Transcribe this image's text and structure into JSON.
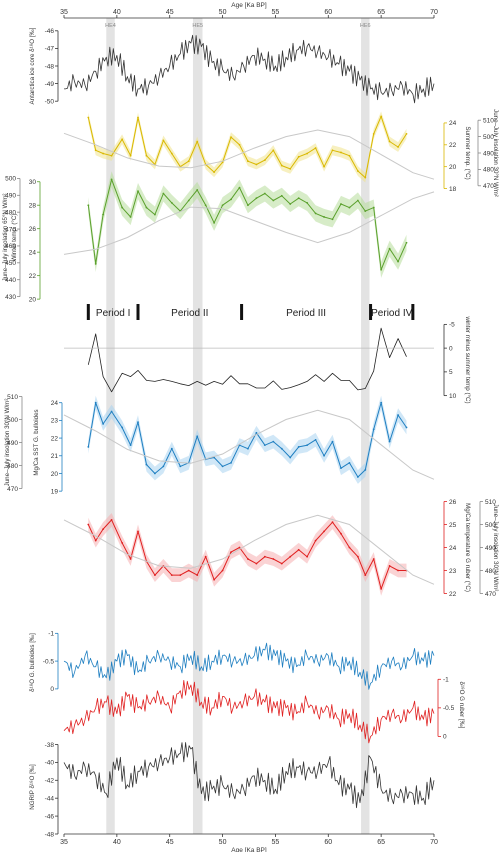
{
  "chart_data": {
    "type": "line",
    "xlabel": "Age [Ka BP]",
    "xlim": [
      35,
      70
    ],
    "x_ticks": [
      35,
      40,
      45,
      50,
      55,
      60,
      65,
      70
    ],
    "heinrich_events": [
      {
        "label": "HE4",
        "from": 39.0,
        "to": 39.8
      },
      {
        "label": "HE5",
        "from": 47.2,
        "to": 48.1
      },
      {
        "label": "HE6",
        "from": 63.1,
        "to": 63.9
      }
    ],
    "periods": [
      {
        "label": "Period I",
        "from": 37.3,
        "to": 42.0
      },
      {
        "label": "Period II",
        "from": 42.0,
        "to": 51.8
      },
      {
        "label": "Period III",
        "from": 51.8,
        "to": 64.0
      },
      {
        "label": "Period IV",
        "from": 64.0,
        "to": 68.0
      }
    ],
    "panels": [
      {
        "id": "antarctica",
        "label": "Antarctica ice core δ¹⁸O [‰]",
        "color": "#333333",
        "ylim": [
          -50.5,
          -45.5
        ],
        "ticks": [
          -46,
          -47,
          -48,
          -49,
          -50
        ],
        "x": [
          35,
          36,
          37,
          38,
          39,
          40,
          41,
          42,
          43,
          44,
          45,
          46,
          47,
          48,
          49,
          50,
          51,
          52,
          53,
          54,
          55,
          56,
          57,
          58,
          59,
          60,
          61,
          62,
          63,
          64,
          65,
          66,
          67,
          68,
          69,
          70
        ],
        "y": [
          -49.3,
          -48.9,
          -49.1,
          -48.3,
          -47.5,
          -47.4,
          -48.6,
          -49.3,
          -49.1,
          -48.6,
          -48.0,
          -47.3,
          -46.7,
          -46.9,
          -47.8,
          -48.2,
          -48.6,
          -48.0,
          -47.4,
          -47.6,
          -48.0,
          -47.5,
          -47.1,
          -46.9,
          -47.2,
          -47.5,
          -47.9,
          -48.3,
          -48.8,
          -49.3,
          -49.5,
          -49.4,
          -49.1,
          -49.6,
          -49.3,
          -49.0
        ]
      },
      {
        "id": "summer",
        "label": "Summer temp. (°C)",
        "color": "#d9b800",
        "band": "#f0e48c",
        "ylim": [
          17.5,
          25
        ],
        "ticks": [
          18,
          20,
          22,
          24
        ],
        "x": [
          37.3,
          38,
          38.7,
          39.5,
          40.5,
          41.3,
          42,
          42.8,
          43.6,
          44.4,
          45.2,
          46,
          46.8,
          47.6,
          48.4,
          49.2,
          50,
          50.8,
          51.6,
          52.4,
          53.2,
          54,
          54.8,
          55.6,
          56.4,
          57.2,
          58,
          58.8,
          59.6,
          60.4,
          61.2,
          62,
          62.8,
          63.5,
          64.3,
          65,
          65.8,
          66.6,
          67.4
        ],
        "y": [
          24.5,
          21.5,
          21.2,
          21.0,
          22.5,
          21.0,
          24.5,
          21.0,
          20.2,
          22.4,
          21.2,
          20.0,
          20.5,
          22.3,
          20.2,
          19.5,
          20.4,
          22.7,
          22.0,
          20.5,
          20.2,
          20.6,
          21.5,
          20.1,
          19.8,
          20.9,
          21.2,
          21.7,
          20.0,
          21.5,
          21.3,
          21.0,
          19.6,
          19.0,
          23.0,
          24.6,
          22.3,
          21.8,
          23.0
        ]
      },
      {
        "id": "winter",
        "label": "Winter temp. (°C)",
        "color": "#5aa02c",
        "band": "#b7dc9b",
        "ylim": [
          19.5,
          31
        ],
        "ticks": [
          20,
          22,
          24,
          26,
          28,
          30
        ],
        "x": [
          37.3,
          38,
          38.7,
          39.5,
          40.5,
          41.3,
          42,
          42.8,
          43.6,
          44.4,
          45.2,
          46,
          46.8,
          47.6,
          48.4,
          49.2,
          50,
          50.8,
          51.6,
          52.4,
          53.2,
          54,
          54.8,
          55.6,
          56.4,
          57.2,
          58,
          58.8,
          59.6,
          60.4,
          61.2,
          62,
          62.8,
          63.5,
          64.3,
          65,
          65.8,
          66.6,
          67.4
        ],
        "y": [
          28.0,
          23.0,
          27.2,
          30.2,
          27.8,
          27.0,
          29.2,
          27.8,
          27.2,
          29.0,
          28.2,
          27.5,
          28.4,
          29.3,
          28.0,
          26.5,
          28.0,
          28.5,
          29.5,
          28.0,
          28.6,
          29.0,
          28.4,
          28.8,
          28.1,
          28.6,
          28.2,
          27.3,
          27.0,
          26.8,
          28.1,
          27.8,
          28.4,
          27.5,
          27.8,
          22.5,
          24.3,
          23.2,
          24.8
        ]
      },
      {
        "id": "difference",
        "label": "winter minus summer temp (°C)",
        "color": "#222222",
        "ylim": [
          10.5,
          -5.5
        ],
        "ticks": [
          -5,
          0,
          5,
          10
        ],
        "x": [
          37.3,
          38,
          38.7,
          39.5,
          40.5,
          41.3,
          42,
          42.8,
          43.6,
          44.4,
          45.2,
          46,
          46.8,
          47.6,
          48.4,
          49.2,
          50,
          50.8,
          51.6,
          52.4,
          53.2,
          54,
          54.8,
          55.6,
          56.4,
          57.2,
          58,
          58.8,
          59.6,
          60.4,
          61.2,
          62,
          62.8,
          63.5,
          64.3,
          65,
          65.8,
          66.6,
          67.4
        ],
        "y": [
          3.5,
          -3.0,
          6.0,
          9.2,
          5.3,
          6.0,
          4.7,
          6.8,
          7.0,
          6.6,
          7.0,
          7.5,
          7.9,
          7.0,
          7.8,
          7.0,
          7.6,
          5.8,
          7.5,
          7.5,
          8.4,
          8.4,
          6.9,
          8.7,
          8.3,
          7.7,
          7.0,
          5.6,
          7.0,
          5.3,
          6.8,
          6.8,
          8.8,
          8.5,
          4.8,
          -4.2,
          2.0,
          -2.0,
          1.8
        ]
      },
      {
        "id": "sst_bulloides",
        "label": "Mg/Ca SST G. bulloides",
        "color": "#1f7fc1",
        "band": "#a9d3f0",
        "ylim": [
          18.5,
          25
        ],
        "ticks": [
          19,
          20,
          21,
          22,
          23,
          24
        ],
        "x": [
          37.3,
          38,
          38.7,
          39.5,
          40.5,
          41.3,
          42,
          42.8,
          43.6,
          44.4,
          45.2,
          46,
          46.8,
          47.6,
          48.4,
          49.2,
          50,
          50.8,
          51.6,
          52.4,
          53.2,
          54,
          54.8,
          55.6,
          56.4,
          57.2,
          58,
          58.8,
          59.6,
          60.4,
          61.2,
          62,
          62.8,
          63.5,
          64.3,
          65,
          65.8,
          66.6,
          67.4
        ],
        "y": [
          21.5,
          24.0,
          22.8,
          23.5,
          22.6,
          21.6,
          22.9,
          20.5,
          20.0,
          20.4,
          21.4,
          20.4,
          20.6,
          22.1,
          20.8,
          20.9,
          20.4,
          20.6,
          21.6,
          21.4,
          22.3,
          21.6,
          21.8,
          21.4,
          20.9,
          21.5,
          21.6,
          21.9,
          21.0,
          21.8,
          20.3,
          20.6,
          19.8,
          20.2,
          22.5,
          24.0,
          21.8,
          23.3,
          22.6
        ]
      },
      {
        "id": "ruber",
        "label": "Mg/Ca temperature G ruber (°C)",
        "color": "#e02020",
        "band": "#f5aeb0",
        "ylim": [
          21.5,
          26.5
        ],
        "ticks": [
          22,
          23,
          24,
          25,
          26
        ],
        "x": [
          37.3,
          38,
          38.7,
          39.5,
          40.5,
          41.3,
          42,
          42.8,
          43.6,
          44.4,
          45.2,
          46,
          46.8,
          47.6,
          48.4,
          49.2,
          50,
          50.8,
          51.6,
          52.4,
          53.2,
          54,
          54.8,
          55.6,
          56.4,
          57.2,
          58,
          58.8,
          59.6,
          60.4,
          61.2,
          62,
          62.8,
          63.5,
          64.3,
          65,
          65.8,
          66.6,
          67.4
        ],
        "y": [
          25.0,
          24.3,
          24.8,
          25.2,
          24.2,
          23.5,
          24.7,
          23.4,
          22.8,
          23.2,
          22.8,
          22.8,
          23.0,
          22.8,
          23.6,
          22.6,
          23.0,
          23.8,
          24.0,
          23.5,
          23.3,
          23.6,
          23.5,
          23.3,
          23.6,
          23.9,
          23.6,
          24.3,
          24.7,
          25.1,
          24.6,
          24.0,
          23.6,
          22.8,
          23.5,
          22.2,
          23.2,
          23.0,
          23.0
        ]
      },
      {
        "id": "d18o_bulloides",
        "label": "δ¹⁸O G. bulloides [‰]",
        "color": "#1f7fc1",
        "ylim": [
          0.2,
          -1.15
        ],
        "ticks": [
          -1,
          -0.5,
          0
        ],
        "x": [
          35,
          36,
          37,
          38,
          39,
          40,
          41,
          42,
          43,
          44,
          45,
          46,
          47,
          48,
          49,
          50,
          51,
          52,
          53,
          54,
          55,
          56,
          57,
          58,
          59,
          60,
          61,
          62,
          63,
          64,
          65,
          66,
          67,
          68,
          69,
          70
        ],
        "y": [
          -0.5,
          -0.3,
          -0.6,
          -0.4,
          -0.2,
          -0.5,
          -0.6,
          -0.3,
          -0.5,
          -0.6,
          -0.5,
          -0.4,
          -0.6,
          -0.4,
          -0.5,
          -0.6,
          -0.5,
          -0.5,
          -0.6,
          -0.7,
          -0.6,
          -0.5,
          -0.4,
          -0.6,
          -0.5,
          -0.6,
          -0.4,
          -0.5,
          -0.3,
          -0.1,
          -0.4,
          -0.5,
          -0.4,
          -0.6,
          -0.5,
          -0.6
        ]
      },
      {
        "id": "d18o_ruber",
        "label": "δ¹⁸O G ruber [‰]",
        "color": "#e02020",
        "ylim": [
          0.15,
          -1.25
        ],
        "ticks": [
          -1,
          -0.5,
          0
        ],
        "x": [
          35,
          36,
          37,
          38,
          39,
          40,
          41,
          42,
          43,
          44,
          45,
          46,
          47,
          48,
          49,
          50,
          51,
          52,
          53,
          54,
          55,
          56,
          57,
          58,
          59,
          60,
          61,
          62,
          63,
          64,
          65,
          66,
          67,
          68,
          69,
          70
        ],
        "y": [
          -0.1,
          -0.2,
          -0.3,
          -0.5,
          -0.6,
          -0.4,
          -0.7,
          -0.5,
          -0.6,
          -0.7,
          -0.5,
          -0.8,
          -0.9,
          -0.6,
          -0.5,
          -0.7,
          -0.5,
          -0.6,
          -0.7,
          -0.6,
          -0.5,
          -0.5,
          -0.4,
          -0.6,
          -0.4,
          -0.5,
          -0.3,
          -0.4,
          -0.2,
          0.0,
          -0.3,
          -0.4,
          -0.3,
          -0.5,
          -0.3,
          -0.4
        ]
      },
      {
        "id": "ngrip",
        "label": "NGRIP δ¹⁸O [‰]",
        "color": "#333333",
        "ylim": [
          -48,
          -37.5
        ],
        "ticks": [
          -38,
          -40,
          -42,
          -44,
          -46,
          -48
        ],
        "x": [
          35,
          36,
          37,
          38,
          39,
          40,
          41,
          42,
          43,
          44,
          45,
          46,
          47,
          48,
          49,
          50,
          51,
          52,
          53,
          54,
          55,
          56,
          57,
          58,
          59,
          60,
          61,
          62,
          63,
          64,
          65,
          66,
          67,
          68,
          69,
          70
        ],
        "y": [
          -40.0,
          -41.5,
          -40.5,
          -41.5,
          -43.5,
          -39.5,
          -42.5,
          -41.0,
          -40.5,
          -40.0,
          -39.5,
          -39.0,
          -38.5,
          -43.5,
          -43.0,
          -42.5,
          -43.5,
          -43.0,
          -41.5,
          -42.0,
          -43.0,
          -41.0,
          -40.5,
          -41.0,
          -41.0,
          -40.0,
          -42.5,
          -43.0,
          -44.5,
          -39.5,
          -43.0,
          -44.0,
          -43.5,
          -43.5,
          -44.0,
          -42.0
        ]
      }
    ],
    "insolation_30N": {
      "label": "June–July insolation 30°N W/m²",
      "ticks": [
        470,
        480,
        490,
        500,
        510
      ],
      "ylim": [
        465,
        515
      ],
      "x": [
        35,
        38,
        41,
        44,
        47,
        50,
        53,
        56,
        59,
        62,
        65,
        68,
        70
      ],
      "y": [
        502,
        495,
        487,
        482,
        481,
        485,
        493,
        500,
        504,
        500,
        489,
        478,
        474
      ]
    },
    "insolation_65N": {
      "label": "June–July insolation 65°N W/m²",
      "ticks": [
        430,
        440,
        450,
        460,
        470,
        480,
        490,
        500
      ],
      "ylim": [
        425,
        505
      ],
      "x": [
        35,
        38,
        41,
        44,
        47,
        50,
        53,
        56,
        59,
        62,
        65,
        68,
        70
      ],
      "y": [
        455,
        458,
        465,
        475,
        483,
        482,
        475,
        468,
        462,
        468,
        478,
        488,
        492
      ]
    }
  }
}
